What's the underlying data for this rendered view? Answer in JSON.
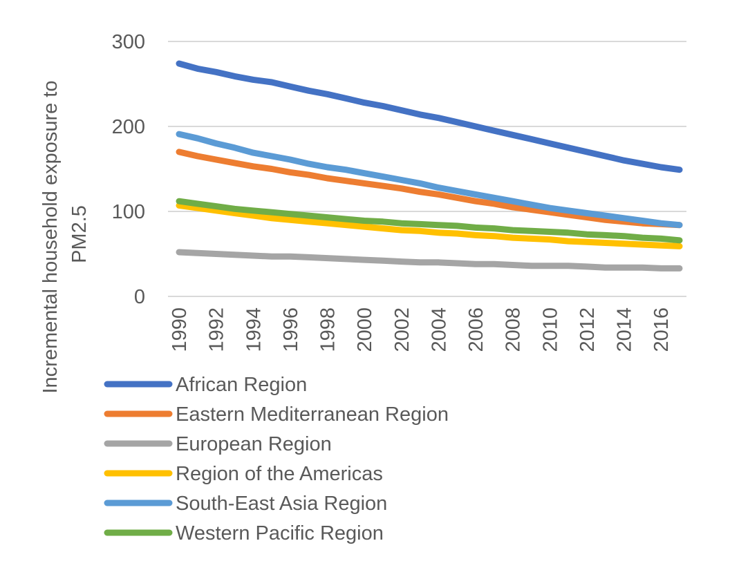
{
  "chart_data": {
    "type": "line",
    "title": "",
    "xlabel": "",
    "ylabel": "Incremental household exposure to PM2.5",
    "ylabel_lines": [
      "Incremental household exposure to",
      "PM2.5"
    ],
    "ylim": [
      0,
      300
    ],
    "yticks": [
      "0",
      "100",
      "200",
      "300"
    ],
    "x": [
      1990,
      1991,
      1992,
      1993,
      1994,
      1995,
      1996,
      1997,
      1998,
      1999,
      2000,
      2001,
      2002,
      2003,
      2004,
      2005,
      2006,
      2007,
      2008,
      2009,
      2010,
      2011,
      2012,
      2013,
      2014,
      2015,
      2016,
      2017
    ],
    "xtick_labels": [
      "1990",
      "1992",
      "1994",
      "1996",
      "1998",
      "2000",
      "2002",
      "2004",
      "2006",
      "2008",
      "2010",
      "2012",
      "2014",
      "2016"
    ],
    "grid": true,
    "legend_position": "bottom",
    "series": [
      {
        "name": "African Region",
        "color": "#4472C4",
        "values": [
          274,
          268,
          264,
          259,
          255,
          252,
          247,
          242,
          238,
          233,
          228,
          224,
          219,
          214,
          210,
          205,
          200,
          195,
          190,
          185,
          180,
          175,
          170,
          165,
          160,
          156,
          152,
          149
        ]
      },
      {
        "name": "Eastern Mediterranean Region",
        "color": "#ED7D31",
        "values": [
          170,
          165,
          161,
          157,
          153,
          150,
          146,
          143,
          139,
          136,
          133,
          130,
          127,
          123,
          120,
          116,
          112,
          109,
          105,
          102,
          99,
          96,
          93,
          90,
          88,
          86,
          85,
          84
        ]
      },
      {
        "name": "European Region",
        "color": "#A5A5A5",
        "values": [
          52,
          51,
          50,
          49,
          48,
          47,
          47,
          46,
          45,
          44,
          43,
          42,
          41,
          40,
          40,
          39,
          38,
          38,
          37,
          36,
          36,
          36,
          35,
          34,
          34,
          34,
          33,
          33
        ]
      },
      {
        "name": "Region of the Americas",
        "color": "#FFC000",
        "values": [
          107,
          104,
          101,
          98,
          95,
          92,
          90,
          88,
          86,
          84,
          82,
          80,
          78,
          77,
          75,
          74,
          72,
          71,
          69,
          68,
          67,
          65,
          64,
          63,
          62,
          61,
          60,
          59
        ]
      },
      {
        "name": "South-East Asia Region",
        "color": "#5B9BD5",
        "values": [
          191,
          186,
          180,
          175,
          169,
          165,
          161,
          156,
          152,
          149,
          145,
          141,
          137,
          133,
          128,
          124,
          120,
          116,
          112,
          108,
          104,
          101,
          98,
          95,
          92,
          89,
          86,
          84
        ]
      },
      {
        "name": "Western Pacific Region",
        "color": "#70AD47",
        "values": [
          112,
          109,
          106,
          103,
          101,
          99,
          97,
          95,
          93,
          91,
          89,
          88,
          86,
          85,
          84,
          83,
          81,
          80,
          78,
          77,
          76,
          75,
          73,
          72,
          71,
          69,
          68,
          66
        ]
      }
    ]
  }
}
